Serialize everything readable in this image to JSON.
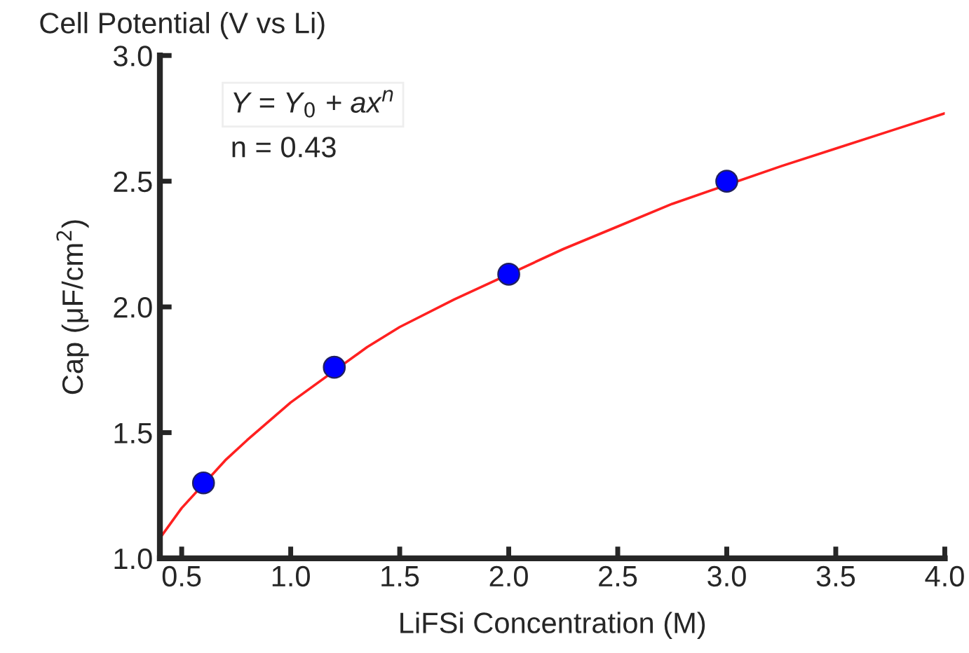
{
  "chart_data": {
    "type": "scatter",
    "title": "Cell Potential (V vs Li)",
    "xlabel": "LiFSi Concentration (M)",
    "ylabel": "Cap (μF/cm$^{2}$)",
    "annotations": [
      "Y = Y$_{0}$ + ax$^{n}$",
      "n = 0.43"
    ],
    "series": [
      {
        "color": "#0000ff",
        "x": [
          0.6,
          1.2,
          2.0,
          3.0
        ],
        "values": [
          1.3,
          1.76,
          2.13,
          2.5
        ],
        "marker": "circle"
      },
      {
        "type": "line",
        "color": "#ff2020",
        "x": [
          0.4,
          0.5,
          0.7,
          0.8,
          1.0,
          1.35,
          1.5,
          1.75,
          2.25,
          2.5,
          2.75,
          3.25,
          3.5,
          3.75,
          4.0
        ],
        "values": [
          1.08,
          1.2,
          1.39,
          1.47,
          1.62,
          1.84,
          1.92,
          2.03,
          2.23,
          2.32,
          2.41,
          2.56,
          2.63,
          2.7,
          2.77
        ],
        "marker": "none"
      }
    ],
    "xlim": [
      0.4,
      4.0
    ],
    "xticks": [
      {
        "value": 0.5,
        "label": "0.5"
      },
      {
        "value": 1.0,
        "label": "1.0"
      },
      {
        "value": 1.5,
        "label": "1.5"
      },
      {
        "value": 2.0,
        "label": "2.0"
      },
      {
        "value": 2.5,
        "label": "2.5"
      },
      {
        "value": 3.0,
        "label": "3.0"
      },
      {
        "value": 3.5,
        "label": "3.5"
      },
      {
        "value": 4.0,
        "label": "4.0"
      }
    ],
    "ylim": [
      1.0,
      3.0
    ],
    "yticks": [
      {
        "value": 1.0,
        "label": "1.0"
      },
      {
        "value": 1.5,
        "label": "1.5"
      },
      {
        "value": 2.0,
        "label": "2.0"
      },
      {
        "value": 2.5,
        "label": "2.5"
      },
      {
        "value": 3.0,
        "label": "3.0"
      }
    ],
    "grid": false,
    "legend": false
  }
}
